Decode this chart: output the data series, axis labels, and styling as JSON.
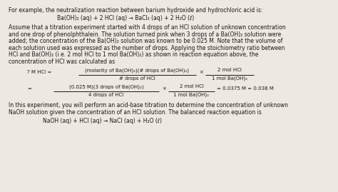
{
  "bg_color": "#ede8e0",
  "text_color": "#1a1a1a",
  "font_size": 5.5,
  "small_font": 5.0,
  "line1": "For example, the neutralization reaction between barium hydroxide and hydrochloric acid is:",
  "eq1": "Ba(OH)₂ (aq) + 2 HCl (aq) → BaCl₂ (aq) + 2 H₂O (ℓ)",
  "para1": [
    "Assume that a titration experiment started with 4 drops of an HCl solution of unknown concentration",
    "and one drop of phenolphthalein. The solution turned pink when 3 drops of a Ba(OH)₂ solution were",
    "added; the concentration of the Ba(OH)₂ solution was known to be 0.025 M. Note that the volume of",
    "each solution used was expressed as the number of drops. Applying the stoichiometry ratio between",
    "HCl and Ba(OH)₂ (i.e. 2 mol HCl to 1 mol Ba(OH)₂) as shown in reaction equation above, the",
    "concentration of HCl was calculated as"
  ],
  "f1_label": "? M HCl =",
  "f1_num": "(molarity of Ba(OH)₂)(# drops of Ba(OH)₂)",
  "f1_den": "# drops of HCl",
  "f1_rnum": "2 mol HCl",
  "f1_rden": "1 mol Ba(OH)₂",
  "f2_label": "=",
  "f2_num": "(0.025 M)(3 drops of Ba(OH)₂)",
  "f2_den": "4 drops of HCl",
  "f2_rnum": "2 mol HCl",
  "f2_rden": "1 mol Ba(OH)₂",
  "f2_result": "= 0.0375 M = 0.038 M",
  "para2": [
    "In this experiment, you will perform an acid-base titration to determine the concentration of unknown",
    "NaOH solution given the concentration of an HCl solution. The balanced reaction equation is"
  ],
  "eq2": "NaOH (aq) + HCl (aq) → NaCl (aq) + H₂O (ℓ)"
}
